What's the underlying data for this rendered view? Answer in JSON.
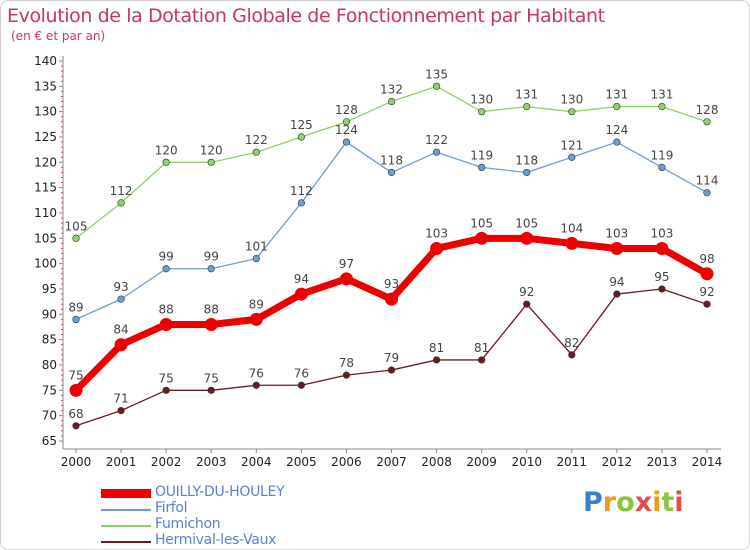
{
  "title": "Evolution de la Dotation Globale de Fonctionnement par Habitant",
  "subtitle": "(en € et par an)",
  "logo": {
    "text": "Proxiti"
  },
  "chart_data": {
    "type": "line",
    "x": [
      2000,
      2001,
      2002,
      2003,
      2004,
      2005,
      2006,
      2007,
      2008,
      2009,
      2010,
      2011,
      2012,
      2013,
      2014
    ],
    "ylim": [
      65,
      140
    ],
    "yticks": [
      65,
      70,
      75,
      80,
      85,
      90,
      95,
      100,
      105,
      110,
      115,
      120,
      125,
      130,
      135,
      140
    ],
    "grid": false,
    "legend_position": "bottom-left",
    "series": [
      {
        "name": "Hermival-les-Vaux",
        "color": "#6b1a22",
        "values": [
          68,
          71,
          75,
          75,
          76,
          76,
          78,
          79,
          81,
          81,
          92,
          82,
          94,
          95,
          92
        ]
      },
      {
        "name": "Fumichon",
        "color": "#8fd16a",
        "values": [
          105,
          112,
          120,
          120,
          122,
          125,
          128,
          132,
          135,
          130,
          131,
          130,
          131,
          131,
          128
        ]
      },
      {
        "name": "Firfol",
        "color": "#6a9fd0",
        "values": [
          89,
          93,
          99,
          99,
          101,
          112,
          124,
          118,
          122,
          119,
          118,
          121,
          124,
          119,
          114
        ]
      },
      {
        "name": "OUILLY-DU-HOULEY",
        "color": "#ee0000",
        "values": [
          75,
          84,
          88,
          88,
          89,
          94,
          97,
          93,
          103,
          105,
          105,
          104,
          103,
          103,
          98
        ],
        "highlight": true
      }
    ],
    "legend_order": [
      "OUILLY-DU-HOULEY",
      "Firfol",
      "Fumichon",
      "Hermival-les-Vaux"
    ]
  }
}
